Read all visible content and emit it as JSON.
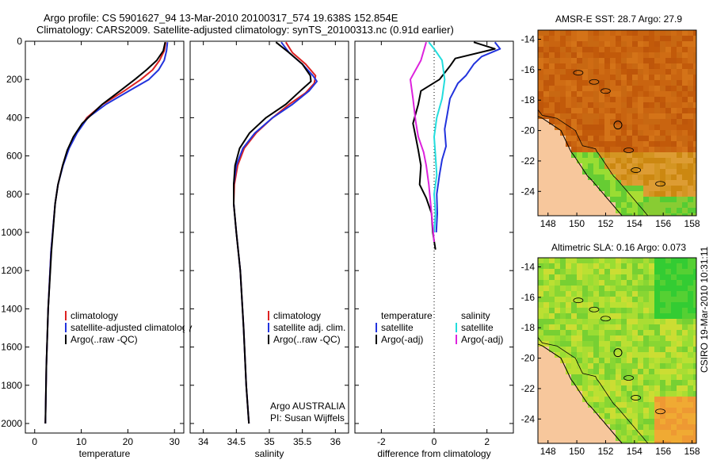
{
  "header": {
    "title_line1": "Argo profile: CS 5901627_94 13-Mar-2010 20100317_574 19.638S 152.854E",
    "title_line2": "Climatology: CARS2009. Satellite-adjusted climatology: synTS_20100313.nc (0.91d earlier)"
  },
  "colors": {
    "climatology": "#dd2222",
    "satellite": "#2233dd",
    "argo": "#000000",
    "sat_salinity": "#22dddd",
    "argo_salinity": "#dd22dd",
    "land": "#f7c79c"
  },
  "credits": {
    "line1": "Argo AUSTRALIA",
    "line2": "PI: Susan Wijffels"
  },
  "timestamp": "CSIRO 19-Mar-2010 10:31:11",
  "chart_data": [
    {
      "id": "temperature",
      "type": "line",
      "xlabel": "temperature",
      "ylabel": "",
      "xlim": [
        -2,
        32
      ],
      "ylim": [
        2050,
        0
      ],
      "xticks": [
        0,
        10,
        20,
        30
      ],
      "yticks": [
        0,
        200,
        400,
        600,
        800,
        1000,
        1200,
        1400,
        1600,
        1800,
        2000
      ],
      "legend": [
        "climatology",
        "satellite-adjusted climatology",
        "Argo(..raw -QC)"
      ],
      "series": [
        {
          "name": "climatology",
          "color": "#dd2222",
          "x": [
            28.1,
            27.8,
            26.8,
            25.3,
            22.8,
            19.2,
            14.6,
            11.2,
            9.0,
            7.3,
            6.0,
            5.0,
            4.4,
            3.5,
            2.9,
            2.5,
            2.3
          ],
          "y": [
            5,
            50,
            100,
            150,
            200,
            260,
            330,
            400,
            480,
            560,
            650,
            750,
            850,
            1100,
            1400,
            1700,
            2000
          ]
        },
        {
          "name": "satellite",
          "color": "#2233dd",
          "x": [
            28.5,
            28.3,
            27.8,
            26.6,
            24.5,
            20.2,
            15.3,
            11.4,
            9.1,
            7.4,
            6.1,
            5.0,
            4.4,
            3.5,
            2.9,
            2.5,
            2.3
          ],
          "y": [
            5,
            50,
            100,
            150,
            200,
            260,
            330,
            400,
            480,
            560,
            650,
            750,
            850,
            1100,
            1400,
            1700,
            2000
          ]
        },
        {
          "name": "Argo",
          "color": "#000000",
          "x": [
            28.0,
            27.6,
            26.2,
            24.0,
            21.5,
            18.3,
            14.5,
            10.2,
            8.3,
            7.0,
            6.0,
            5.0,
            4.4,
            3.6,
            2.9,
            2.5,
            2.3
          ],
          "y": [
            5,
            50,
            100,
            150,
            200,
            260,
            330,
            430,
            500,
            570,
            650,
            750,
            850,
            1100,
            1400,
            1700,
            2000
          ]
        }
      ]
    },
    {
      "id": "salinity",
      "type": "line",
      "xlabel": "salinity",
      "xlim": [
        33.8,
        36.2
      ],
      "ylim": [
        2050,
        0
      ],
      "xticks": [
        34,
        34.5,
        35,
        35.5,
        36
      ],
      "legend": [
        "climatology",
        "satellite adj. clim.",
        "Argo(..raw -QC)"
      ],
      "series": [
        {
          "name": "climatology",
          "color": "#dd2222",
          "x": [
            35.25,
            35.35,
            35.55,
            35.7,
            35.68,
            35.55,
            35.3,
            35.05,
            34.8,
            34.62,
            34.52,
            34.47,
            34.46,
            34.5,
            34.56,
            34.61,
            34.65,
            34.69
          ],
          "y": [
            5,
            60,
            120,
            180,
            220,
            270,
            330,
            400,
            480,
            560,
            650,
            750,
            850,
            1000,
            1200,
            1500,
            1800,
            2000
          ]
        },
        {
          "name": "satellite",
          "color": "#2233dd",
          "x": [
            35.18,
            35.3,
            35.5,
            35.66,
            35.72,
            35.6,
            35.35,
            35.05,
            34.78,
            34.6,
            34.5,
            34.46,
            34.46,
            34.5,
            34.56,
            34.61,
            34.65,
            34.69
          ],
          "y": [
            5,
            60,
            120,
            180,
            210,
            260,
            330,
            400,
            480,
            560,
            650,
            750,
            850,
            1000,
            1200,
            1500,
            1800,
            2000
          ]
        },
        {
          "name": "Argo",
          "color": "#000000",
          "x": [
            35.1,
            35.3,
            35.5,
            35.62,
            35.63,
            35.5,
            35.25,
            34.95,
            34.7,
            34.55,
            34.48,
            34.46,
            34.46,
            34.5,
            34.56,
            34.61,
            34.65,
            34.69
          ],
          "y": [
            5,
            60,
            120,
            180,
            210,
            250,
            330,
            400,
            480,
            560,
            650,
            750,
            850,
            1000,
            1200,
            1500,
            1800,
            2000
          ]
        }
      ]
    },
    {
      "id": "difference",
      "type": "line",
      "xlabel": "difference from climatology",
      "xlim": [
        -3,
        3
      ],
      "ylim": [
        2050,
        0
      ],
      "xticks": [
        -2,
        0,
        2
      ],
      "zero_line": 0,
      "legend_col1": [
        "temperature",
        "satellite",
        "Argo(-adj)"
      ],
      "legend_col2": [
        "salinity",
        "satellite",
        "Argo(-adj)"
      ],
      "series": [
        {
          "name": "temp satellite",
          "color": "#2233dd",
          "x": [
            2.3,
            2.5,
            1.8,
            1.5,
            1.2,
            0.9,
            0.6,
            0.5,
            0.4,
            0.45,
            0.3,
            0.2,
            0.1,
            0.12,
            0.08
          ],
          "y": [
            5,
            40,
            80,
            120,
            180,
            220,
            300,
            380,
            460,
            550,
            620,
            700,
            800,
            900,
            1000
          ]
        },
        {
          "name": "temp Argo",
          "color": "#000000",
          "x": [
            1.5,
            2.3,
            0.8,
            0.6,
            0.2,
            -0.5,
            -0.6,
            -0.8,
            -0.7,
            -0.6,
            -0.5,
            -0.55,
            -0.3,
            -0.1,
            -0.05,
            0.05
          ],
          "y": [
            5,
            40,
            90,
            130,
            200,
            260,
            330,
            430,
            500,
            570,
            650,
            750,
            820,
            900,
            1000,
            1090
          ]
        },
        {
          "name": "sal satellite",
          "color": "#22dddd",
          "x": [
            -0.2,
            0.0,
            0.3,
            0.4,
            0.3,
            0.1,
            0.0,
            0.05,
            0.1,
            0.0,
            0.05,
            0.0
          ],
          "y": [
            5,
            40,
            100,
            200,
            300,
            400,
            500,
            600,
            700,
            800,
            900,
            1000
          ]
        },
        {
          "name": "sal Argo",
          "color": "#dd22dd",
          "x": [
            -0.3,
            -0.5,
            -0.9,
            -0.8,
            -0.7,
            -0.6,
            -0.4,
            -0.3,
            -0.2,
            -0.1,
            0.0
          ],
          "y": [
            5,
            100,
            200,
            300,
            420,
            500,
            580,
            650,
            750,
            900,
            1050
          ]
        }
      ]
    },
    {
      "id": "sst_map",
      "type": "heatmap",
      "title": "AMSR-E SST: 28.7  Argo: 27.9",
      "xticks": [
        148,
        150,
        152,
        154,
        156,
        158
      ],
      "yticks": [
        -14,
        -16,
        -18,
        -20,
        -22,
        -24
      ],
      "xlim": [
        147.3,
        158.3
      ],
      "ylim": [
        -25.6,
        -13.4
      ],
      "float_lon": 152.854,
      "float_lat": -19.638
    },
    {
      "id": "sla_map",
      "type": "heatmap",
      "title": "Altimetric SLA: 0.16  Argo: 0.073",
      "xticks": [
        148,
        150,
        152,
        154,
        156,
        158
      ],
      "yticks": [
        -14,
        -16,
        -18,
        -20,
        -22,
        -24
      ],
      "xlim": [
        147.3,
        158.3
      ],
      "ylim": [
        -25.6,
        -13.4
      ],
      "float_lon": 152.854,
      "float_lat": -19.638
    }
  ]
}
